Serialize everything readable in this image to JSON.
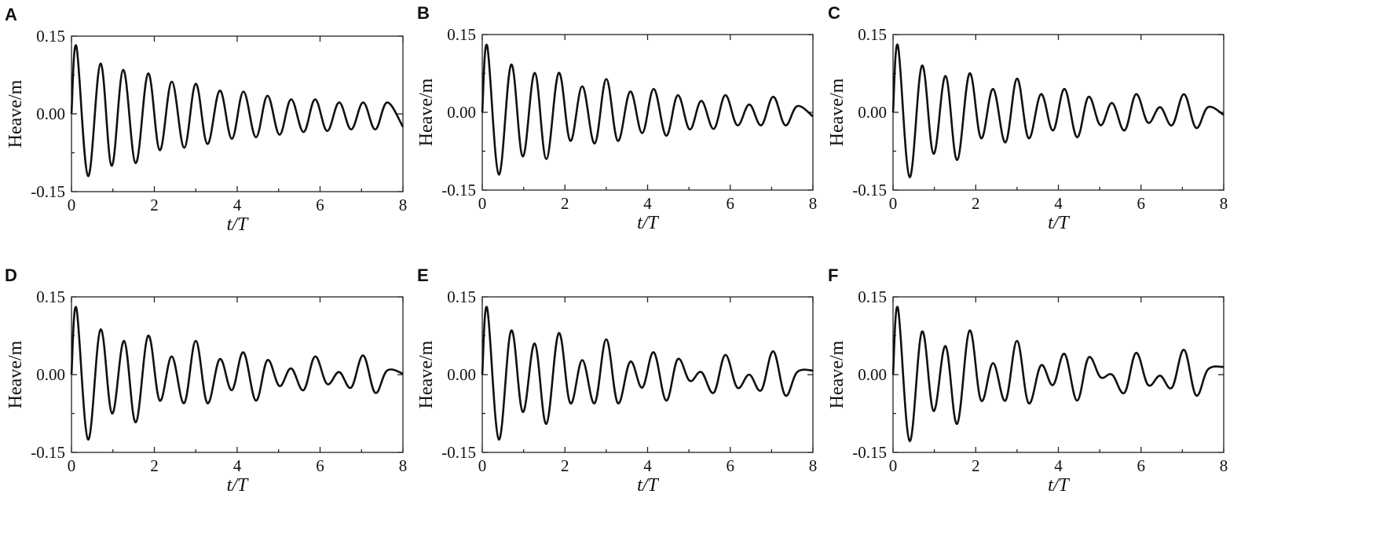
{
  "chart_data": [
    {
      "panel": "A",
      "type": "line",
      "xlabel": "t/T",
      "ylabel": "Heave/m",
      "xlim": [
        0,
        8
      ],
      "ylim": [
        -0.15,
        0.15
      ],
      "xticks": [
        "0",
        "2",
        "4",
        "6",
        "8"
      ],
      "yticks": [
        "0.15",
        "0.00",
        "-0.15"
      ],
      "series": [
        {
          "x": [
            0,
            0.12,
            0.4,
            0.7,
            0.97,
            1.25,
            1.55,
            1.85,
            2.13,
            2.42,
            2.72,
            3.0,
            3.28,
            3.58,
            3.87,
            4.15,
            4.45,
            4.73,
            5.02,
            5.3,
            5.6,
            5.88,
            6.17,
            6.46,
            6.75,
            7.04,
            7.33,
            7.62,
            8.0
          ],
          "y": [
            0.0,
            0.13,
            -0.12,
            0.097,
            -0.1,
            0.085,
            -0.095,
            0.078,
            -0.07,
            0.062,
            -0.065,
            0.058,
            -0.058,
            0.045,
            -0.048,
            0.043,
            -0.045,
            0.035,
            -0.04,
            0.028,
            -0.035,
            0.028,
            -0.033,
            0.022,
            -0.03,
            0.022,
            -0.03,
            0.022,
            -0.025
          ]
        }
      ]
    },
    {
      "panel": "B",
      "type": "line",
      "xlabel": "t/T",
      "ylabel": "Heave/m",
      "xlim": [
        0,
        8
      ],
      "ylim": [
        -0.15,
        0.15
      ],
      "xticks": [
        "0",
        "2",
        "4",
        "6",
        "8"
      ],
      "yticks": [
        "0.15",
        "0.00",
        "-0.15"
      ],
      "series": [
        {
          "x": [
            0,
            0.12,
            0.4,
            0.7,
            0.98,
            1.27,
            1.55,
            1.85,
            2.13,
            2.42,
            2.72,
            3.0,
            3.28,
            3.58,
            3.87,
            4.15,
            4.45,
            4.73,
            5.02,
            5.3,
            5.6,
            5.88,
            6.17,
            6.46,
            6.75,
            7.04,
            7.33,
            7.62,
            8.0
          ],
          "y": [
            0.0,
            0.128,
            -0.12,
            0.092,
            -0.085,
            0.076,
            -0.09,
            0.076,
            -0.055,
            0.05,
            -0.06,
            0.064,
            -0.055,
            0.04,
            -0.04,
            0.045,
            -0.045,
            0.033,
            -0.033,
            0.022,
            -0.032,
            0.033,
            -0.025,
            0.015,
            -0.025,
            0.03,
            -0.025,
            0.012,
            -0.008
          ]
        }
      ]
    },
    {
      "panel": "C",
      "type": "line",
      "xlabel": "t/T",
      "ylabel": "Heave/m",
      "xlim": [
        0,
        8
      ],
      "ylim": [
        -0.15,
        0.15
      ],
      "xticks": [
        "0",
        "2",
        "4",
        "6",
        "8"
      ],
      "yticks": [
        "0.15",
        "0.00",
        "-0.15"
      ],
      "series": [
        {
          "x": [
            0,
            0.12,
            0.4,
            0.7,
            0.98,
            1.27,
            1.55,
            1.85,
            2.13,
            2.42,
            2.72,
            3.0,
            3.28,
            3.58,
            3.87,
            4.15,
            4.45,
            4.73,
            5.02,
            5.3,
            5.6,
            5.88,
            6.17,
            6.46,
            6.75,
            7.04,
            7.33,
            7.62,
            8.0
          ],
          "y": [
            0.0,
            0.128,
            -0.125,
            0.09,
            -0.08,
            0.07,
            -0.092,
            0.075,
            -0.05,
            0.045,
            -0.058,
            0.065,
            -0.05,
            0.035,
            -0.035,
            0.045,
            -0.048,
            0.03,
            -0.025,
            0.018,
            -0.035,
            0.035,
            -0.02,
            0.01,
            -0.025,
            0.035,
            -0.03,
            0.01,
            -0.005
          ]
        }
      ]
    },
    {
      "panel": "D",
      "type": "line",
      "xlabel": "t/T",
      "ylabel": "Heave/m",
      "xlim": [
        0,
        8
      ],
      "ylim": [
        -0.15,
        0.15
      ],
      "xticks": [
        "0",
        "2",
        "4",
        "6",
        "8"
      ],
      "yticks": [
        "0.15",
        "0.00",
        "-0.15"
      ],
      "series": [
        {
          "x": [
            0,
            0.12,
            0.4,
            0.7,
            0.98,
            1.27,
            1.55,
            1.85,
            2.13,
            2.42,
            2.72,
            3.0,
            3.28,
            3.58,
            3.87,
            4.15,
            4.45,
            4.73,
            5.02,
            5.3,
            5.6,
            5.88,
            6.17,
            6.46,
            6.75,
            7.04,
            7.33,
            7.62,
            8.0
          ],
          "y": [
            0.0,
            0.128,
            -0.125,
            0.087,
            -0.075,
            0.065,
            -0.092,
            0.075,
            -0.05,
            0.035,
            -0.055,
            0.065,
            -0.055,
            0.03,
            -0.03,
            0.043,
            -0.05,
            0.028,
            -0.022,
            0.012,
            -0.03,
            0.035,
            -0.018,
            0.005,
            -0.025,
            0.037,
            -0.035,
            0.008,
            0.002
          ]
        }
      ]
    },
    {
      "panel": "E",
      "type": "line",
      "xlabel": "t/T",
      "ylabel": "Heave/m",
      "xlim": [
        0,
        8
      ],
      "ylim": [
        -0.15,
        0.15
      ],
      "xticks": [
        "0",
        "2",
        "4",
        "6",
        "8"
      ],
      "yticks": [
        "0.15",
        "0.00",
        "-0.15"
      ],
      "series": [
        {
          "x": [
            0,
            0.12,
            0.4,
            0.7,
            0.98,
            1.27,
            1.55,
            1.85,
            2.13,
            2.42,
            2.72,
            3.0,
            3.28,
            3.58,
            3.87,
            4.15,
            4.45,
            4.73,
            5.02,
            5.3,
            5.6,
            5.88,
            6.17,
            6.46,
            6.75,
            7.04,
            7.33,
            7.62,
            8.0
          ],
          "y": [
            0.0,
            0.128,
            -0.125,
            0.085,
            -0.072,
            0.06,
            -0.095,
            0.08,
            -0.055,
            0.028,
            -0.055,
            0.068,
            -0.055,
            0.025,
            -0.025,
            0.043,
            -0.05,
            0.03,
            -0.012,
            0.005,
            -0.035,
            0.038,
            -0.025,
            0.0,
            -0.03,
            0.045,
            -0.04,
            0.005,
            0.008
          ]
        }
      ]
    },
    {
      "panel": "F",
      "type": "line",
      "xlabel": "t/T",
      "ylabel": "Heave/m",
      "xlim": [
        0,
        8
      ],
      "ylim": [
        -0.15,
        0.15
      ],
      "xticks": [
        "0",
        "2",
        "4",
        "6",
        "8"
      ],
      "yticks": [
        "0.15",
        "0.00",
        "-0.15"
      ],
      "series": [
        {
          "x": [
            0,
            0.12,
            0.4,
            0.7,
            0.98,
            1.27,
            1.55,
            1.85,
            2.13,
            2.42,
            2.72,
            3.0,
            3.28,
            3.58,
            3.87,
            4.15,
            4.45,
            4.73,
            5.02,
            5.3,
            5.6,
            5.88,
            6.17,
            6.46,
            6.75,
            7.04,
            7.33,
            7.62,
            8.0
          ],
          "y": [
            0.0,
            0.128,
            -0.128,
            0.083,
            -0.07,
            0.055,
            -0.095,
            0.085,
            -0.05,
            0.022,
            -0.05,
            0.065,
            -0.055,
            0.018,
            -0.02,
            0.04,
            -0.05,
            0.033,
            -0.005,
            0.0,
            -0.035,
            0.042,
            -0.02,
            -0.002,
            -0.025,
            0.048,
            -0.04,
            0.01,
            0.015
          ]
        }
      ]
    }
  ]
}
